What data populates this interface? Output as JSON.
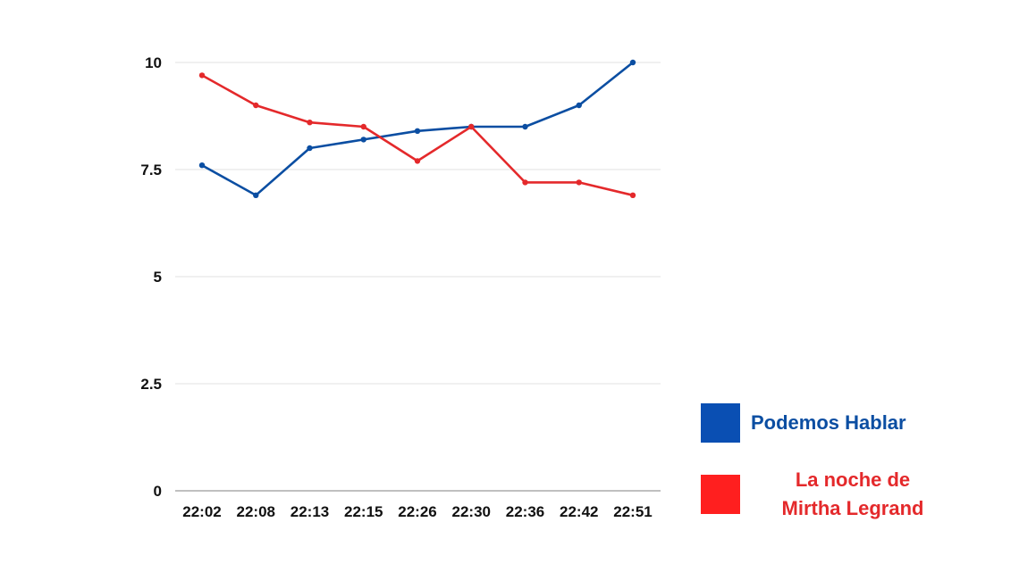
{
  "chart_data": {
    "type": "line",
    "title": "",
    "xlabel": "",
    "ylabel": "",
    "categories": [
      "22:02",
      "22:08",
      "22:13",
      "22:15",
      "22:26",
      "22:30",
      "22:36",
      "22:42",
      "22:51"
    ],
    "yticks": [
      "0",
      "2.5",
      "5",
      "7.5",
      "10"
    ],
    "ylim": [
      0,
      10
    ],
    "grid": true,
    "legend_position": "right",
    "series": [
      {
        "name": "Podemos Hablar",
        "color": "#0b4ea2",
        "values": [
          7.6,
          6.9,
          8.0,
          8.2,
          8.4,
          8.5,
          8.5,
          9.0,
          10.0
        ]
      },
      {
        "name": "La noche de\nMirtha Legrand",
        "color": "#e4292b",
        "values": [
          9.7,
          9.0,
          8.6,
          8.5,
          7.7,
          8.5,
          7.2,
          7.2,
          6.9
        ]
      }
    ]
  },
  "legend": {
    "items": [
      {
        "label": "Podemos Hablar",
        "swatch_color": "#0a4fb3",
        "text_color": "#0b4ea2"
      },
      {
        "label": "La noche de\nMirtha Legrand",
        "swatch_color": "#ff1f1f",
        "text_color": "#e4292b"
      }
    ]
  }
}
